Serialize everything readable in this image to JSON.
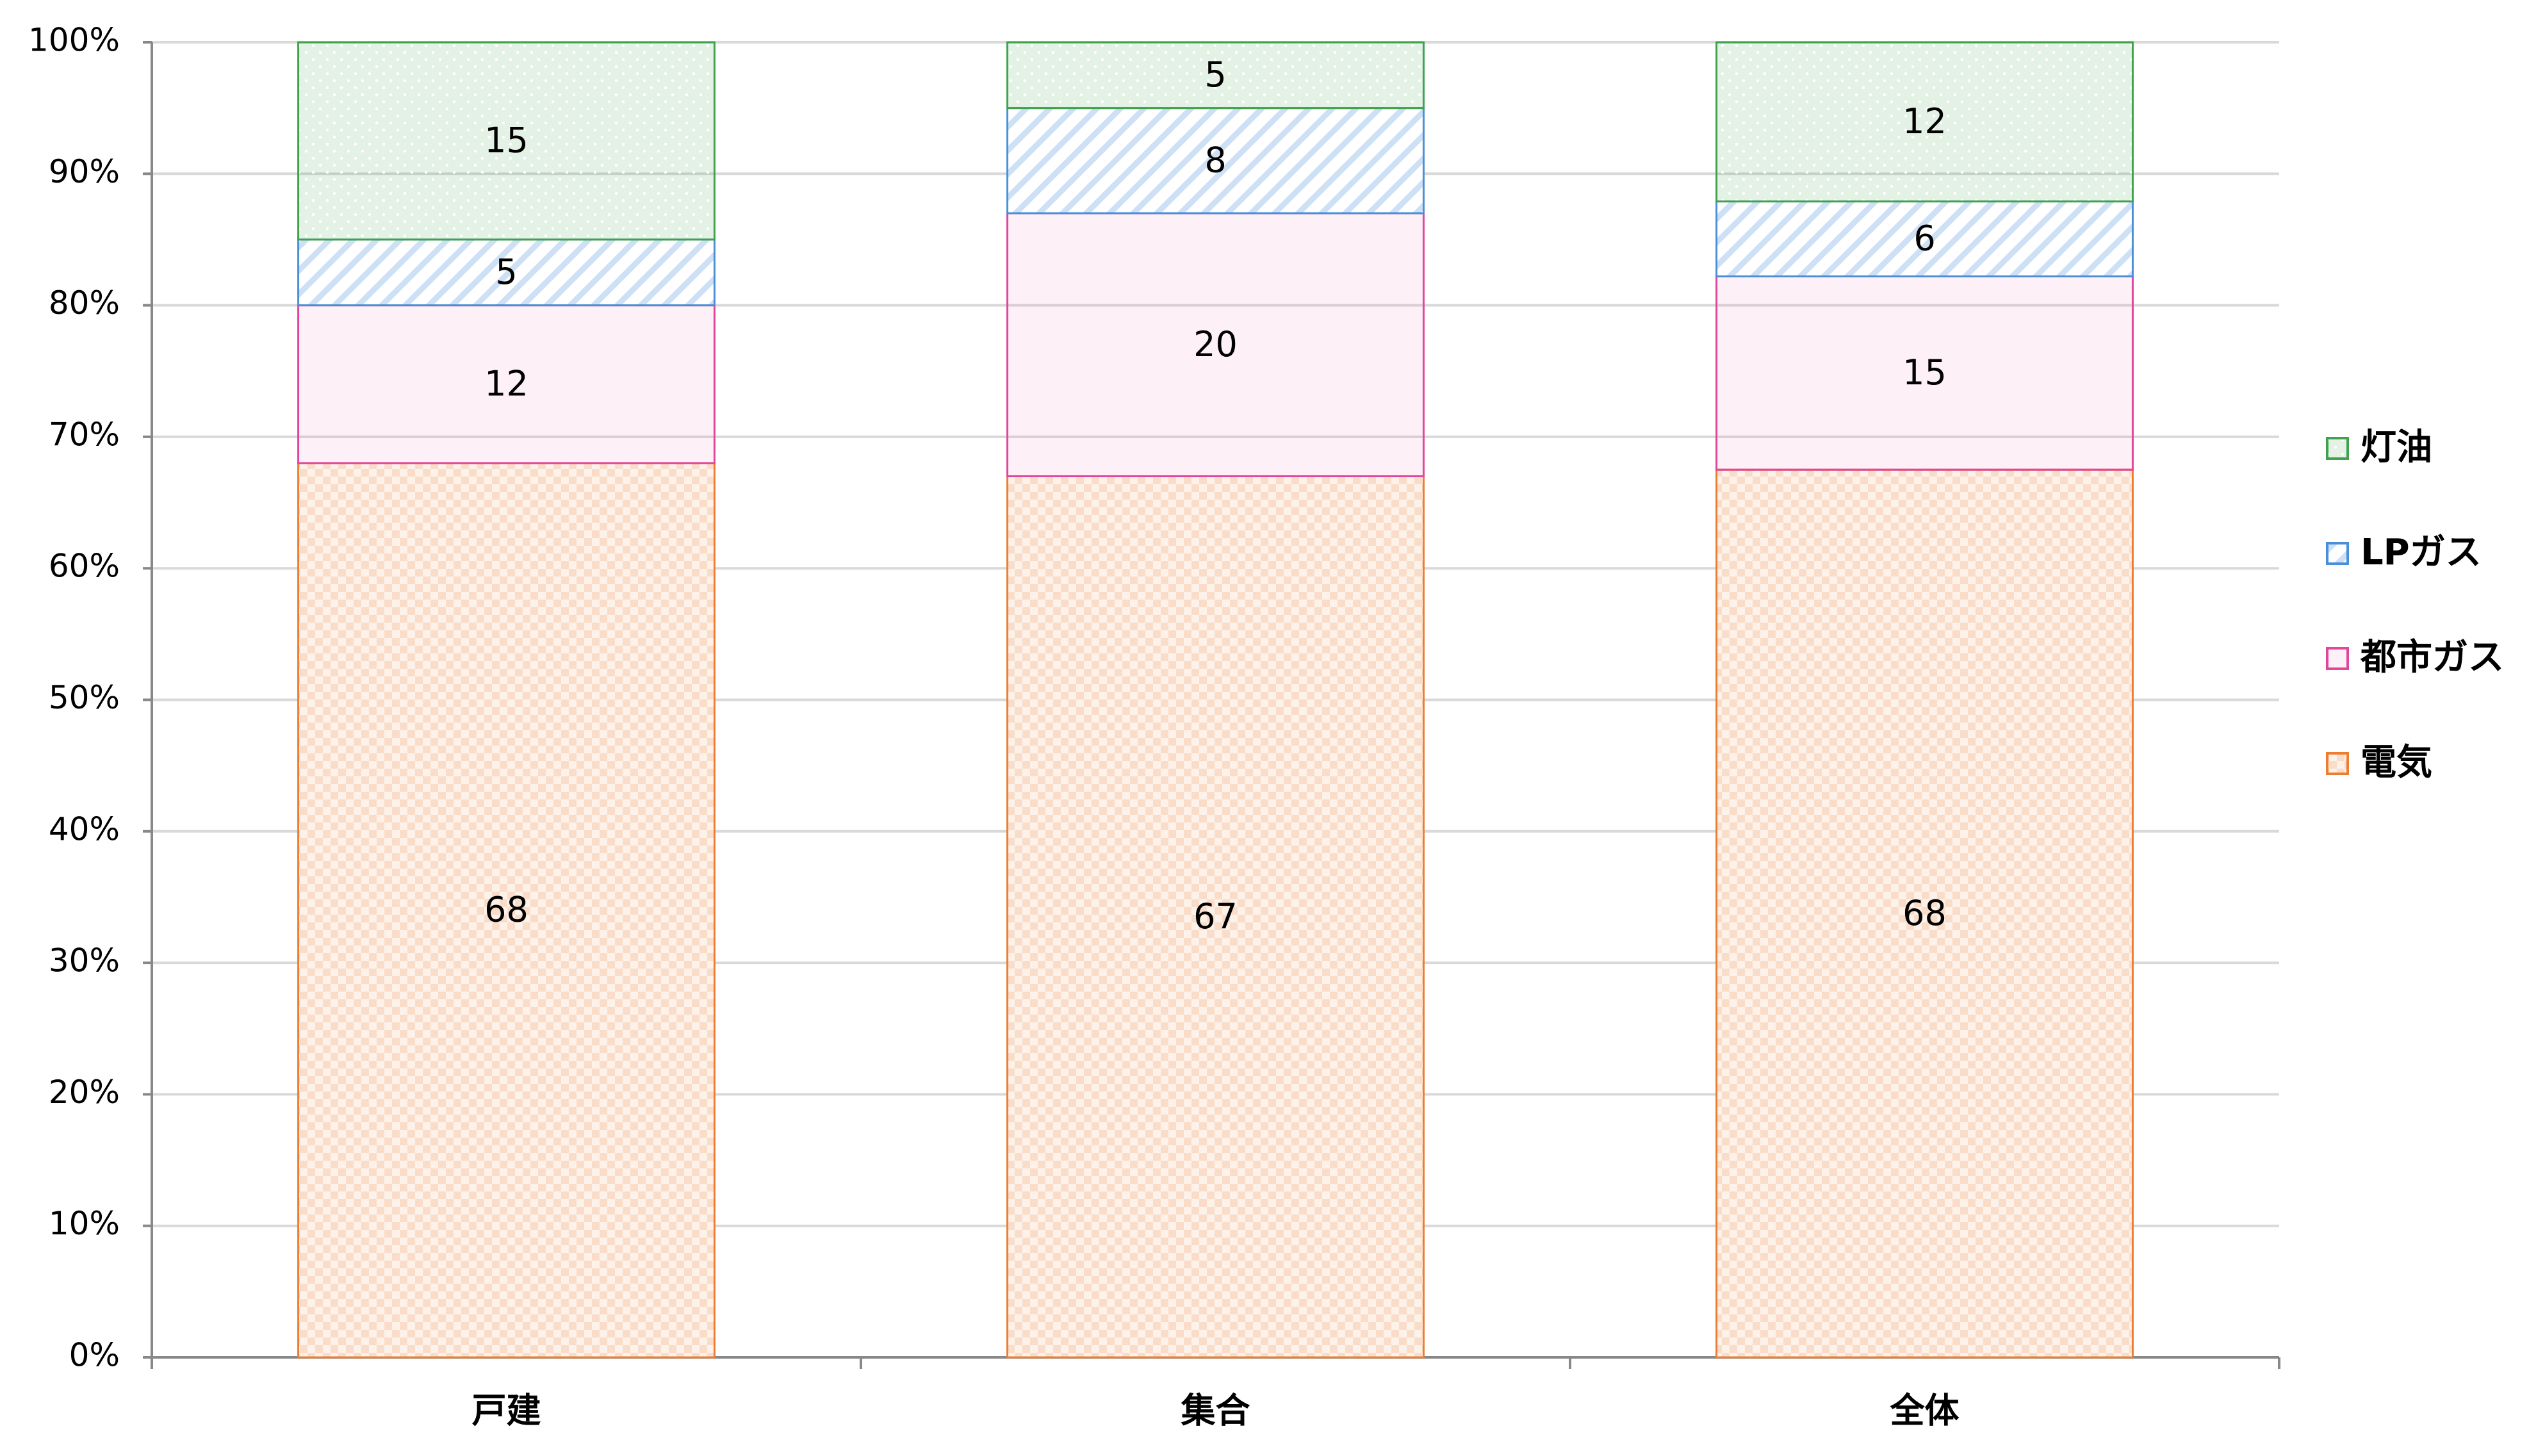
{
  "chart_data": {
    "type": "stacked-bar",
    "categories": [
      "戸建",
      "集合",
      "全体"
    ],
    "series": [
      {
        "name": "電気",
        "color": "#ed7d31",
        "values": [
          68,
          67,
          67.5
        ],
        "value_labels": [
          "68",
          "67",
          "68"
        ]
      },
      {
        "name": "都市ガス",
        "color": "#e0469c",
        "values": [
          12,
          20,
          14.7
        ],
        "value_labels": [
          "12",
          "20",
          "15"
        ]
      },
      {
        "name": "LPガス",
        "color": "#4a90d9",
        "values": [
          5,
          8,
          5.7
        ],
        "value_labels": [
          "5",
          "8",
          "6"
        ]
      },
      {
        "name": "灯油",
        "color": "#3fa34d",
        "values": [
          15,
          5,
          12.1
        ],
        "value_labels": [
          "15",
          "5",
          "12"
        ]
      }
    ],
    "ylim": [
      0,
      100
    ],
    "yticks": [
      {
        "value": 0,
        "label": "0%"
      },
      {
        "value": 10,
        "label": "10%"
      },
      {
        "value": 20,
        "label": "20%"
      },
      {
        "value": 30,
        "label": "30%"
      },
      {
        "value": 40,
        "label": "40%"
      },
      {
        "value": 50,
        "label": "50%"
      },
      {
        "value": 60,
        "label": "60%"
      },
      {
        "value": 70,
        "label": "70%"
      },
      {
        "value": 80,
        "label": "80%"
      },
      {
        "value": 90,
        "label": "90%"
      },
      {
        "value": 100,
        "label": "100%"
      }
    ],
    "grid": true,
    "legend": "right"
  }
}
